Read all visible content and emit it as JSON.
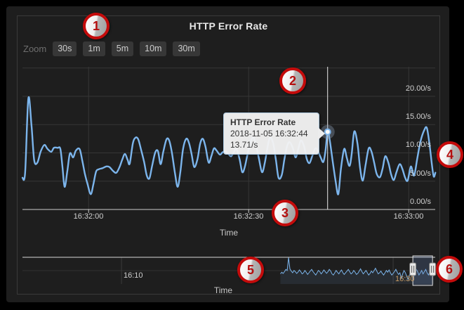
{
  "panel": {
    "title": "HTTP Error Rate"
  },
  "toolbar": {
    "zoom_label": "Zoom",
    "buttons": [
      "30s",
      "1m",
      "5m",
      "10m",
      "30m"
    ]
  },
  "tooltip": {
    "series": "HTTP Error Rate",
    "timestamp": "2018-11-05 16:32:44",
    "value": "13.71/s"
  },
  "colors": {
    "series": "#7cb5ec",
    "grid": "#363636",
    "axis_line": "#cccccc",
    "crosshair": "#ebebeb",
    "nav_outline": "#d8d8d8",
    "nav_fill": "rgba(124,181,236,0.10)",
    "selection_fill": "rgba(110,140,200,0.22)",
    "selection_border": "#e0e0e0",
    "handle_fill": "#e8e8e8",
    "handle_border": "#777777",
    "annotation_red": "#c40b0b"
  },
  "annotations": [
    {
      "label": "1"
    },
    {
      "label": "2"
    },
    {
      "label": "3"
    },
    {
      "label": "4"
    },
    {
      "label": "5"
    },
    {
      "label": "6"
    }
  ],
  "chart_data": [
    {
      "type": "line",
      "title": "HTTP Error Rate",
      "xlabel": "Time",
      "x_ticks": [
        "16:32:00",
        "16:32:30",
        "16:33:00"
      ],
      "y_ticks_top_down": [
        "20.00/s",
        "15.00/s",
        "10.00/s",
        "5.00/s",
        "0.00/s"
      ],
      "ylim": [
        0,
        25
      ],
      "hover_point": {
        "t_sec": 57.2,
        "value": 13.71,
        "time": "2018-11-05 16:32:44"
      },
      "series": [
        {
          "name": "HTTP Error Rate",
          "points_t_sec_v": [
            [
              0,
              5.6
            ],
            [
              0.5,
              6.5
            ],
            [
              1.1,
              19.6
            ],
            [
              1.7,
              14.8
            ],
            [
              2.2,
              8.7
            ],
            [
              2.8,
              8.3
            ],
            [
              3.4,
              10.2
            ],
            [
              4.1,
              11.4
            ],
            [
              4.7,
              10.7
            ],
            [
              5.4,
              10.2
            ],
            [
              5.9,
              10.9
            ],
            [
              6.6,
              10.9
            ],
            [
              7.1,
              10.7
            ],
            [
              7.5,
              7.5
            ],
            [
              7.9,
              4.0
            ],
            [
              8.4,
              6.7
            ],
            [
              8.9,
              9.9
            ],
            [
              9.5,
              9.2
            ],
            [
              10,
              10.4
            ],
            [
              10.7,
              10.7
            ],
            [
              11.2,
              8.7
            ],
            [
              11.7,
              6.3
            ],
            [
              12.2,
              4.5
            ],
            [
              12.8,
              2.7
            ],
            [
              13.3,
              4.5
            ],
            [
              13.8,
              6.7
            ],
            [
              14.3,
              7.1
            ],
            [
              15,
              7.3
            ],
            [
              15.7,
              7.6
            ],
            [
              16.3,
              7.5
            ],
            [
              17,
              6.8
            ],
            [
              17.6,
              6.5
            ],
            [
              18.2,
              7.5
            ],
            [
              18.7,
              8.8
            ],
            [
              19.2,
              9.8
            ],
            [
              19.7,
              8.8
            ],
            [
              20.1,
              8.1
            ],
            [
              20.7,
              11.7
            ],
            [
              21.2,
              12.7
            ],
            [
              21.7,
              12.4
            ],
            [
              22.2,
              10.7
            ],
            [
              22.8,
              8.4
            ],
            [
              23.3,
              6.0
            ],
            [
              23.8,
              5.5
            ],
            [
              24.3,
              7.7
            ],
            [
              24.9,
              10.1
            ],
            [
              25.4,
              10.3
            ],
            [
              25.9,
              8.0
            ],
            [
              26.4,
              10.2
            ],
            [
              27,
              12.4
            ],
            [
              27.5,
              12.2
            ],
            [
              28,
              10.1
            ],
            [
              28.6,
              6.3
            ],
            [
              29.1,
              4.0
            ],
            [
              29.6,
              6.7
            ],
            [
              30.1,
              10.7
            ],
            [
              30.7,
              12.5
            ],
            [
              31.2,
              11.8
            ],
            [
              31.7,
              9.8
            ],
            [
              32.2,
              7.5
            ],
            [
              32.8,
              8.9
            ],
            [
              33.3,
              11.6
            ],
            [
              33.8,
              12.5
            ],
            [
              34.3,
              11.1
            ],
            [
              34.9,
              8.3
            ],
            [
              35.4,
              9.4
            ],
            [
              35.9,
              10.8
            ],
            [
              36.4,
              10.4
            ],
            [
              37,
              9.7
            ],
            [
              37.5,
              10.1
            ],
            [
              38,
              10.3
            ],
            [
              38.6,
              9.8
            ],
            [
              39.1,
              9.4
            ],
            [
              39.6,
              10.1
            ],
            [
              40.1,
              10.7
            ],
            [
              40.7,
              8.9
            ],
            [
              41.2,
              6.6
            ],
            [
              41.7,
              7.6
            ],
            [
              42.2,
              9.8
            ],
            [
              42.8,
              12.0
            ],
            [
              43.3,
              12.7
            ],
            [
              43.8,
              11.3
            ],
            [
              44.3,
              9.1
            ],
            [
              44.9,
              6.6
            ],
            [
              45.4,
              8.1
            ],
            [
              45.9,
              10.8
            ],
            [
              46.4,
              12.7
            ],
            [
              47,
              11.7
            ],
            [
              47.5,
              8.8
            ],
            [
              48,
              5.6
            ],
            [
              48.6,
              6.1
            ],
            [
              49.1,
              8.9
            ],
            [
              49.6,
              11.2
            ],
            [
              50.1,
              11.9
            ],
            [
              50.7,
              10.8
            ],
            [
              51.2,
              9.2
            ],
            [
              51.7,
              10.7
            ],
            [
              52.2,
              12.2
            ],
            [
              52.8,
              11.1
            ],
            [
              53.3,
              8.9
            ],
            [
              53.8,
              8.2
            ],
            [
              54.3,
              9.4
            ],
            [
              54.9,
              10.8
            ],
            [
              55.4,
              10.3
            ],
            [
              55.9,
              9.2
            ],
            [
              56.4,
              8.4
            ],
            [
              56.8,
              10.4
            ],
            [
              57.2,
              13.71
            ],
            [
              57.6,
              12.2
            ],
            [
              58.2,
              8.2
            ],
            [
              58.7,
              5.0
            ],
            [
              59.2,
              2.7
            ],
            [
              59.7,
              7.2
            ],
            [
              60.3,
              10.7
            ],
            [
              60.8,
              9.1
            ],
            [
              61.3,
              7.7
            ],
            [
              61.7,
              9.7
            ],
            [
              62.2,
              13.8
            ],
            [
              62.8,
              11.6
            ],
            [
              63.3,
              7.2
            ],
            [
              63.8,
              5.1
            ],
            [
              64.3,
              7.8
            ],
            [
              64.9,
              10.8
            ],
            [
              65.4,
              10.3
            ],
            [
              65.9,
              8.4
            ],
            [
              66.4,
              6.3
            ],
            [
              67,
              5.7
            ],
            [
              67.5,
              7.2
            ],
            [
              68,
              9.4
            ],
            [
              68.6,
              8.2
            ],
            [
              69.1,
              6.2
            ],
            [
              69.6,
              5.2
            ],
            [
              70.1,
              6.6
            ],
            [
              70.7,
              8.0
            ],
            [
              71.2,
              7.2
            ],
            [
              71.7,
              5.7
            ],
            [
              72.2,
              5.1
            ],
            [
              72.8,
              7.6
            ],
            [
              73.4,
              6.0
            ],
            [
              74,
              9.0
            ],
            [
              74.6,
              12.0
            ],
            [
              75.3,
              14.0
            ],
            [
              75.8,
              14.4
            ],
            [
              76.3,
              11.5
            ],
            [
              76.8,
              7.5
            ],
            [
              77.1,
              5.8
            ],
            [
              77.4,
              6.5
            ]
          ]
        }
      ]
    },
    {
      "type": "line",
      "role": "navigator",
      "xlabel": "Time",
      "x_ticks": [
        "16:10",
        "16:30"
      ],
      "x_tick_minutes": [
        10,
        30
      ],
      "selection_min": [
        31.45,
        32.9
      ],
      "series": [
        {
          "name": "HTTP Error Rate",
          "points_min_v": [
            [
              21.7,
              9
            ],
            [
              21.8,
              10.5
            ],
            [
              21.9,
              9.4
            ],
            [
              22,
              11
            ],
            [
              22.1,
              13
            ],
            [
              22.2,
              12
            ],
            [
              22.3,
              23.5
            ],
            [
              22.4,
              13.5
            ],
            [
              22.5,
              11.5
            ],
            [
              22.6,
              10
            ],
            [
              22.7,
              12
            ],
            [
              22.8,
              11
            ],
            [
              22.9,
              9.4
            ],
            [
              23,
              10.6
            ],
            [
              23.1,
              12.5
            ],
            [
              23.2,
              11
            ],
            [
              23.3,
              9
            ],
            [
              23.4,
              10
            ],
            [
              23.5,
              12
            ],
            [
              23.6,
              10.5
            ],
            [
              23.7,
              8.5
            ],
            [
              23.8,
              10
            ],
            [
              23.9,
              11.5
            ],
            [
              24,
              13
            ],
            [
              24.1,
              11
            ],
            [
              24.2,
              9.5
            ],
            [
              24.3,
              8
            ],
            [
              24.4,
              10
            ],
            [
              24.5,
              12
            ],
            [
              24.6,
              11
            ],
            [
              24.7,
              9
            ],
            [
              24.8,
              10.5
            ],
            [
              24.9,
              12.5
            ],
            [
              25,
              11
            ],
            [
              25.1,
              9.5
            ],
            [
              25.2,
              11
            ],
            [
              25.3,
              13
            ],
            [
              25.4,
              11.5
            ],
            [
              25.5,
              9
            ],
            [
              25.6,
              8
            ],
            [
              25.7,
              10
            ],
            [
              25.8,
              12
            ],
            [
              25.9,
              10.5
            ],
            [
              26,
              9
            ],
            [
              26.1,
              11
            ],
            [
              26.2,
              12.5
            ],
            [
              26.3,
              10
            ],
            [
              26.4,
              8.5
            ],
            [
              26.5,
              10
            ],
            [
              26.6,
              11.5
            ],
            [
              26.7,
              13
            ],
            [
              26.8,
              11
            ],
            [
              26.9,
              9
            ],
            [
              27,
              10
            ],
            [
              27.1,
              12
            ],
            [
              27.2,
              10.5
            ],
            [
              27.3,
              8.5
            ],
            [
              27.4,
              9.5
            ],
            [
              27.5,
              11.5
            ],
            [
              27.6,
              13.5
            ],
            [
              27.7,
              11
            ],
            [
              27.8,
              9
            ],
            [
              27.9,
              10.5
            ],
            [
              28,
              12
            ],
            [
              28.1,
              10
            ],
            [
              28.2,
              8
            ],
            [
              28.3,
              9.5
            ],
            [
              28.4,
              11.5
            ],
            [
              28.5,
              10
            ],
            [
              28.6,
              12
            ],
            [
              28.7,
              14
            ],
            [
              28.8,
              11.5
            ],
            [
              28.9,
              9
            ],
            [
              29,
              10
            ],
            [
              29.1,
              11.5
            ],
            [
              29.2,
              9.5
            ],
            [
              29.3,
              8
            ],
            [
              29.4,
              10
            ],
            [
              29.5,
              12
            ],
            [
              29.6,
              10.5
            ],
            [
              29.7,
              12.5
            ],
            [
              29.8,
              10
            ],
            [
              29.9,
              8
            ],
            [
              30,
              9.5
            ],
            [
              30.1,
              11
            ],
            [
              30.2,
              13
            ],
            [
              30.3,
              10.5
            ],
            [
              30.4,
              8.5
            ],
            [
              30.5,
              10
            ],
            [
              30.6,
              5
            ],
            [
              30.7,
              9
            ],
            [
              30.8,
              12
            ],
            [
              30.9,
              10
            ],
            [
              31,
              7
            ],
            [
              31.1,
              4
            ],
            [
              31.2,
              8
            ],
            [
              31.3,
              11
            ],
            [
              31.4,
              9
            ],
            [
              31.5,
              6
            ],
            [
              31.6,
              10
            ],
            [
              31.7,
              13
            ],
            [
              31.8,
              11
            ],
            [
              31.9,
              8
            ],
            [
              32,
              10
            ],
            [
              32.1,
              12
            ],
            [
              32.2,
              9
            ],
            [
              32.3,
              11
            ],
            [
              32.4,
              13
            ],
            [
              32.5,
              10
            ],
            [
              32.6,
              8
            ],
            [
              32.7,
              11
            ],
            [
              32.8,
              13
            ],
            [
              32.9,
              10
            ],
            [
              33,
              7
            ]
          ]
        }
      ]
    }
  ]
}
